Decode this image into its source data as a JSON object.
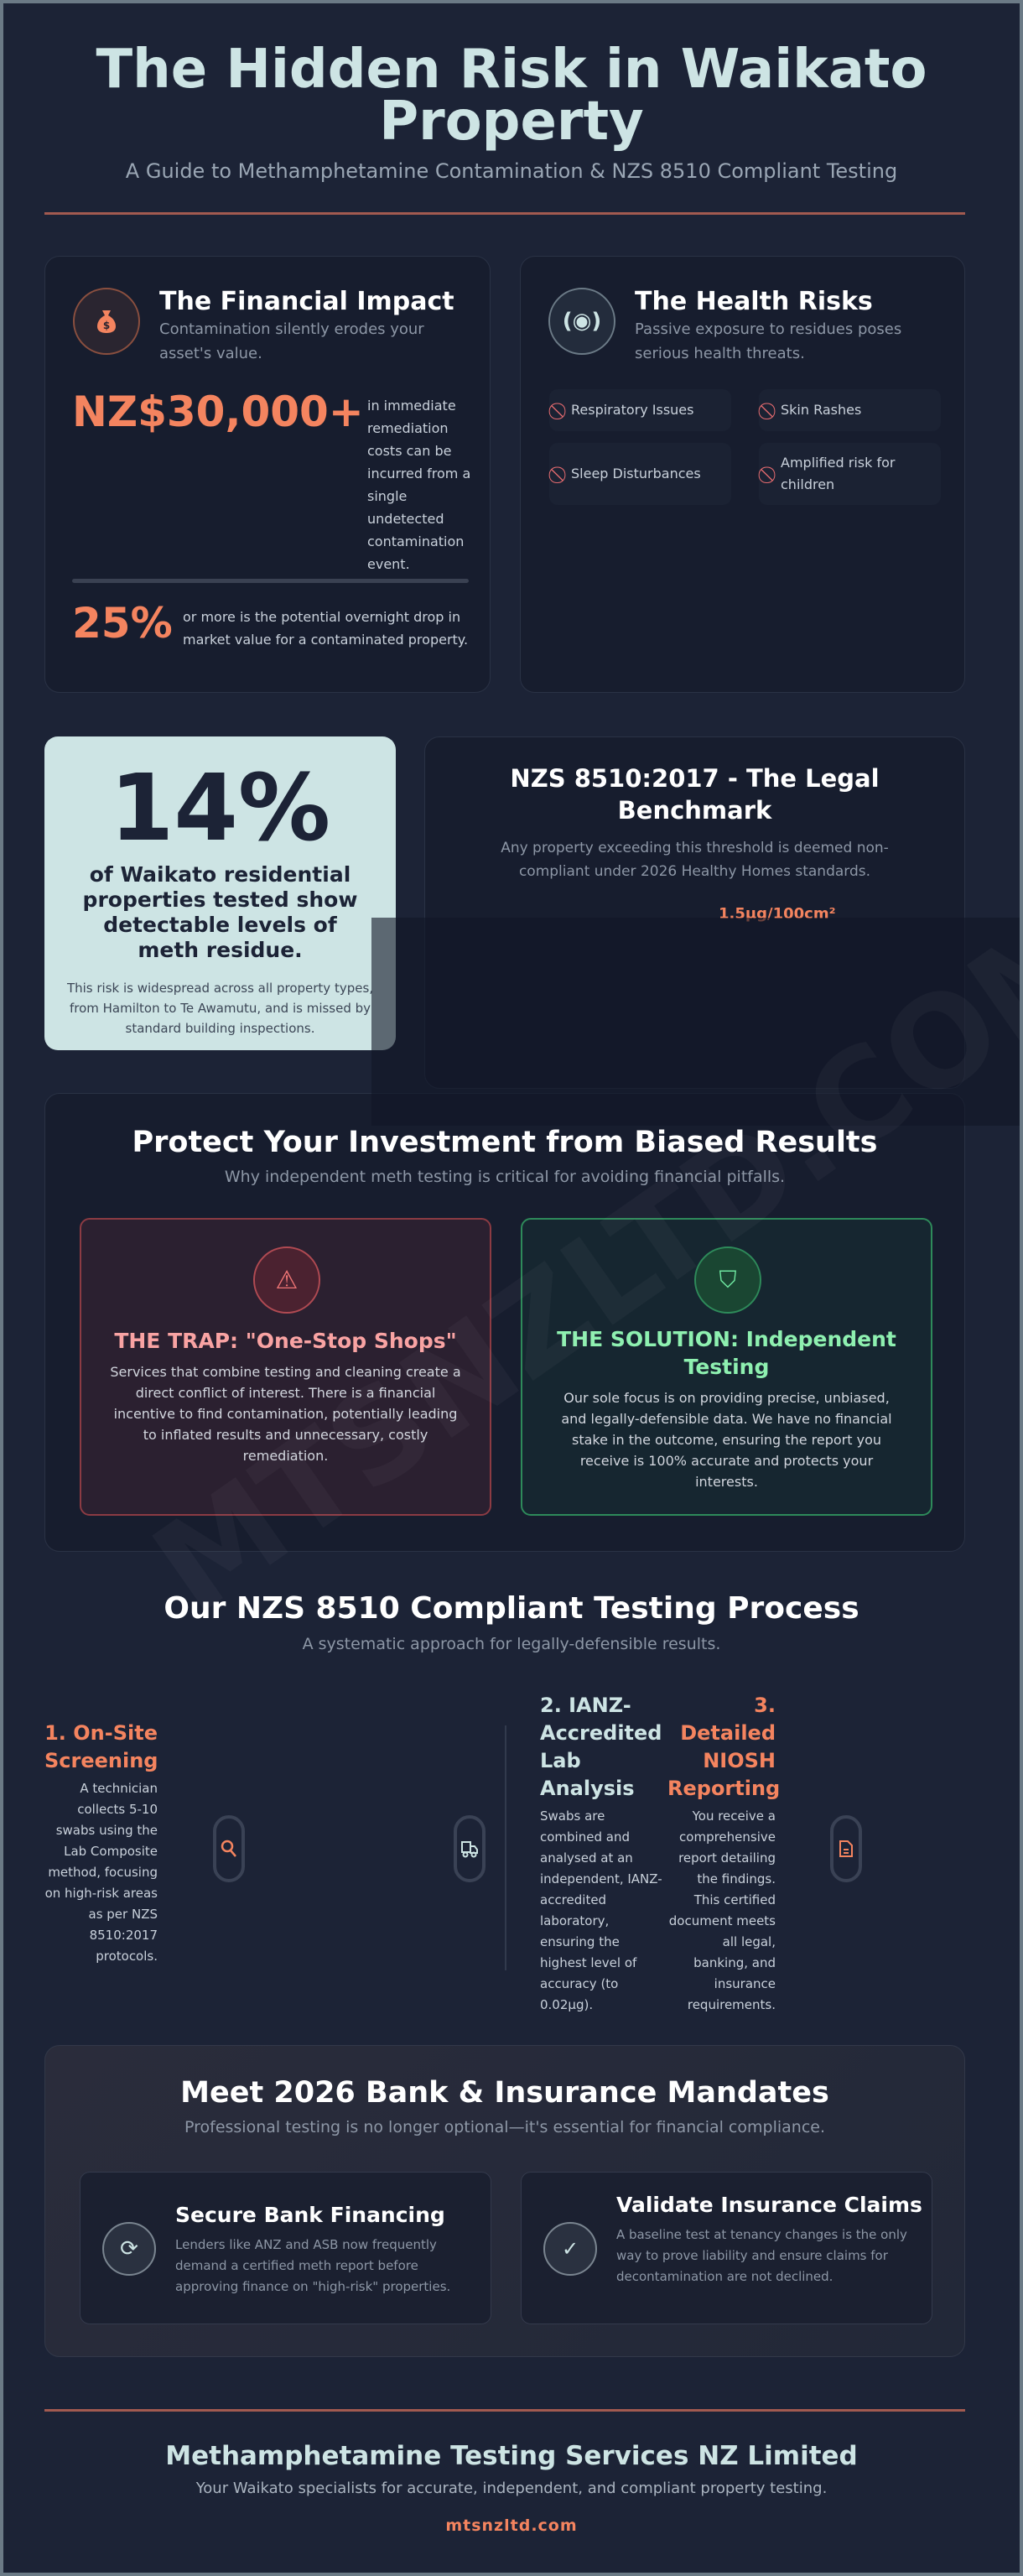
{
  "header": {
    "title": "The Hidden Risk in Waikato Property",
    "subtitle": "A Guide to Methamphetamine Contamination & NZS 8510 Compliant Testing"
  },
  "financial": {
    "icon": "money-bag-icon",
    "title": "The Financial Impact",
    "subtitle": "Contamination silently erodes your asset's value.",
    "stat1": "NZ$30,000+",
    "stat1_text": "in immediate remediation costs can be incurred from a single undetected contamination event.",
    "stat2": "25%",
    "stat2_text": "or more is the potential overnight drop in market value for a contaminated property."
  },
  "health": {
    "icon": "radiation-icon",
    "title": "The Health Risks",
    "subtitle": "Passive exposure to residues poses serious health threats.",
    "items": [
      "Respiratory Issues",
      "Skin Rashes",
      "Sleep Disturbances",
      "Amplified risk for children"
    ]
  },
  "stat14": {
    "value": "14%",
    "headline": "of Waikato residential properties tested show detectable levels of meth residue.",
    "text": "This risk is widespread across all property types, from Hamilton to Te Awamutu, and is missed by standard building inspections."
  },
  "nzs": {
    "title": "NZS 8510:2017 - The Legal Benchmark",
    "text": "Any property exceeding this threshold is deemed non-compliant under 2026 Healthy Homes standards.",
    "threshold": "1.5µg/100cm²"
  },
  "protect": {
    "title": "Protect Your Investment from Biased Results",
    "subtitle": "Why independent meth testing is critical for avoiding financial pitfalls.",
    "trap": {
      "title": "THE TRAP: \"One-Stop Shops\"",
      "text": "Services that combine testing and cleaning create a direct conflict of interest. There is a financial incentive to find contamination, potentially leading to inflated results and unnecessary, costly remediation."
    },
    "solution": {
      "title": "THE SOLUTION: Independent Testing",
      "text": "Our sole focus is on providing precise, unbiased, and legally-defensible data. We have no financial stake in the outcome, ensuring the report you receive is 100% accurate and protects your interests."
    }
  },
  "process": {
    "title": "Our NZS 8510 Compliant Testing Process",
    "subtitle": "A systematic approach for legally-defensible results.",
    "steps": [
      {
        "title": "1. On-Site Screening",
        "text": "A technician collects 5-10 swabs using the Lab Composite method, focusing on high-risk areas as per NZS 8510:2017 protocols.",
        "icon": "search-icon"
      },
      {
        "title": "2. IANZ-Accredited Lab Analysis",
        "text": "Swabs are combined and analysed at an independent, IANZ-accredited laboratory, ensuring the highest level of accuracy (to 0.02µg).",
        "icon": "truck-icon"
      },
      {
        "title": "3. Detailed NIOSH Reporting",
        "text": "You receive a comprehensive report detailing the findings. This certified document meets all legal, banking, and insurance requirements.",
        "icon": "document-icon"
      }
    ]
  },
  "mandates": {
    "title": "Meet 2026 Bank & Insurance Mandates",
    "subtitle": "Professional testing is no longer optional—it's essential for financial compliance.",
    "cards": [
      {
        "title": "Secure Bank Financing",
        "text": "Lenders like ANZ and ASB now frequently demand a certified meth report before approving finance on \"high-risk\" properties.",
        "icon": "refresh-icon"
      },
      {
        "title": "Validate Insurance Claims",
        "text": "A baseline test at tenancy changes is the only way to prove liability and ensure claims for decontamination are not declined.",
        "icon": "check-circle-icon"
      }
    ]
  },
  "footer": {
    "company": "Methamphetamine Testing Services NZ Limited",
    "tagline": "Your Waikato specialists for accurate, independent, and compliant property testing.",
    "link": "mtsnzltd.com"
  },
  "watermark": "MTSNZLTD.COM",
  "colors": {
    "background": "#1c2336",
    "accent": "#f4845f",
    "mint": "#cde4e4",
    "trap": "#f07575",
    "solution": "#6ee7a0"
  }
}
